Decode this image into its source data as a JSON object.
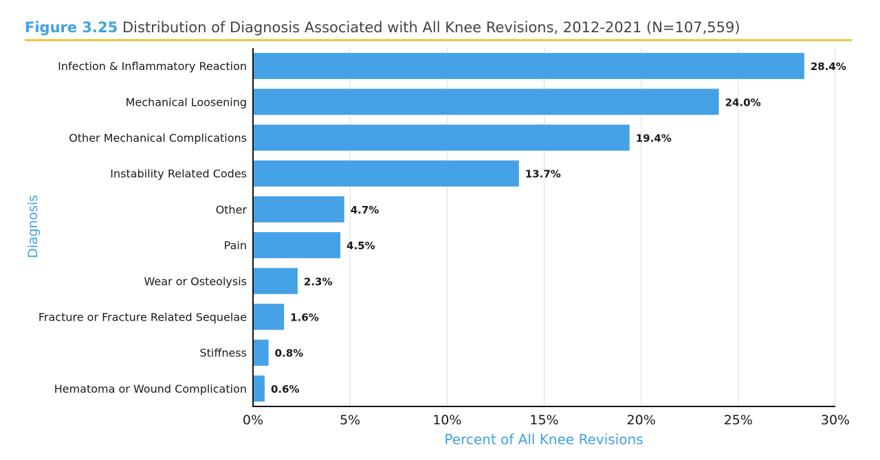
{
  "figure": {
    "label": "Figure 3.25",
    "title": "Distribution of Diagnosis Associated with All Knee Revisions, 2012-2021 (N=107,559)"
  },
  "colors": {
    "bar": "#45a2e6",
    "accent_text": "#3fa3e3",
    "title_rule": "#f5c242",
    "grid": "#dddddd",
    "axis": "#111111"
  },
  "chart_data": {
    "type": "bar",
    "orientation": "horizontal",
    "categories": [
      "Infection & Inflammatory Reaction",
      "Mechanical Loosening",
      "Other Mechanical Complications",
      "Instability Related Codes",
      "Other",
      "Pain",
      "Wear or Osteolysis",
      "Fracture or Fracture Related Sequelae",
      "Stiffness",
      "Hematoma or Wound Complication"
    ],
    "values": [
      28.4,
      24.0,
      19.4,
      13.7,
      4.7,
      4.5,
      2.3,
      1.6,
      0.8,
      0.6
    ],
    "value_labels": [
      "28.4%",
      "24.0%",
      "19.4%",
      "13.7%",
      "4.7%",
      "4.5%",
      "2.3%",
      "1.6%",
      "0.8%",
      "0.6%"
    ],
    "xlabel": "Percent of All Knee Revisions",
    "ylabel": "Diagnosis",
    "xlim": [
      0,
      30
    ],
    "xticks": [
      0,
      5,
      10,
      15,
      20,
      25,
      30
    ],
    "xtick_labels": [
      "0%",
      "5%",
      "10%",
      "15%",
      "20%",
      "25%",
      "30%"
    ],
    "grid": "vertical"
  }
}
